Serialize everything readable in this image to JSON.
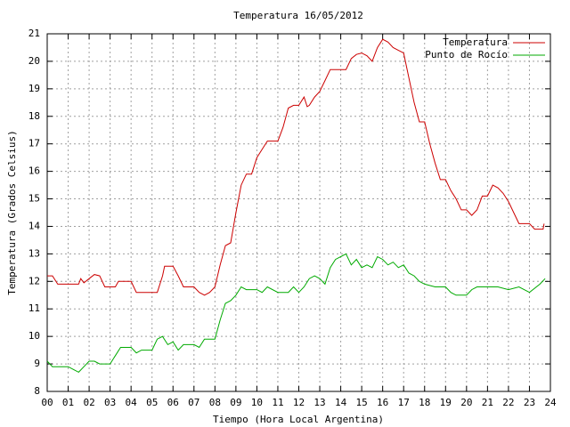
{
  "chart_data": {
    "type": "line",
    "title": "Temperatura 16/05/2012",
    "x_label": "Tiempo (Hora Local Argentina)",
    "y_label": "Temperatura (Grados Celsius)",
    "xlim": [
      0,
      24
    ],
    "ylim": [
      8,
      21
    ],
    "xticks": [
      {
        "value": 0,
        "label": "00"
      },
      {
        "value": 1,
        "label": "01"
      },
      {
        "value": 2,
        "label": "02"
      },
      {
        "value": 3,
        "label": "03"
      },
      {
        "value": 4,
        "label": "04"
      },
      {
        "value": 5,
        "label": "05"
      },
      {
        "value": 6,
        "label": "06"
      },
      {
        "value": 7,
        "label": "07"
      },
      {
        "value": 8,
        "label": "08"
      },
      {
        "value": 9,
        "label": "09"
      },
      {
        "value": 10,
        "label": "10"
      },
      {
        "value": 11,
        "label": "11"
      },
      {
        "value": 12,
        "label": "12"
      },
      {
        "value": 13,
        "label": "13"
      },
      {
        "value": 14,
        "label": "14"
      },
      {
        "value": 15,
        "label": "15"
      },
      {
        "value": 16,
        "label": "16"
      },
      {
        "value": 17,
        "label": "17"
      },
      {
        "value": 18,
        "label": "18"
      },
      {
        "value": 19,
        "label": "19"
      },
      {
        "value": 20,
        "label": "20"
      },
      {
        "value": 21,
        "label": "21"
      },
      {
        "value": 22,
        "label": "22"
      },
      {
        "value": 23,
        "label": "23"
      },
      {
        "value": 24,
        "label": "24"
      }
    ],
    "yticks": [
      8,
      9,
      10,
      11,
      12,
      13,
      14,
      15,
      16,
      17,
      18,
      19,
      20,
      21
    ],
    "grid": true,
    "legend": "top-right",
    "series": [
      {
        "name": "Temperatura",
        "color": "#cc0000",
        "x": [
          0,
          0.25,
          0.5,
          1,
          1.5,
          1.6,
          1.75,
          2,
          2.25,
          2.5,
          2.75,
          3,
          3.25,
          3.4,
          3.5,
          4,
          4.25,
          4.5,
          5,
          5.25,
          5.5,
          5.6,
          6,
          6.25,
          6.5,
          7,
          7.25,
          7.5,
          7.75,
          8,
          8.25,
          8.5,
          8.75,
          9,
          9.25,
          9.5,
          9.75,
          10,
          10.25,
          10.5,
          11,
          11.25,
          11.5,
          11.75,
          12,
          12.25,
          12.4,
          12.5,
          12.75,
          13,
          13.25,
          13.5,
          14,
          14.25,
          14.5,
          14.75,
          15,
          15.25,
          15.5,
          15.75,
          16,
          16.25,
          16.5,
          16.75,
          17,
          17.25,
          17.5,
          17.75,
          18,
          18.25,
          18.5,
          18.75,
          19,
          19.25,
          19.5,
          19.75,
          20,
          20.25,
          20.5,
          20.75,
          21,
          21.25,
          21.5,
          21.75,
          22,
          22.25,
          22.5,
          22.75,
          23,
          23.25,
          23.5,
          23.65,
          23.7
        ],
        "values": [
          12.2,
          12.2,
          11.9,
          11.9,
          11.9,
          12.1,
          11.95,
          12.1,
          12.25,
          12.2,
          11.8,
          11.8,
          11.8,
          12.0,
          12.0,
          12.0,
          11.6,
          11.6,
          11.6,
          11.6,
          12.2,
          12.55,
          12.55,
          12.2,
          11.8,
          11.8,
          11.6,
          11.5,
          11.6,
          11.8,
          12.6,
          13.3,
          13.4,
          14.5,
          15.5,
          15.9,
          15.9,
          16.5,
          16.8,
          17.1,
          17.1,
          17.6,
          18.3,
          18.4,
          18.4,
          18.7,
          18.35,
          18.4,
          18.7,
          18.9,
          19.3,
          19.7,
          19.7,
          19.7,
          20.1,
          20.25,
          20.3,
          20.2,
          20.0,
          20.5,
          20.8,
          20.7,
          20.5,
          20.4,
          20.3,
          19.4,
          18.5,
          17.8,
          17.8,
          17.0,
          16.3,
          15.7,
          15.7,
          15.3,
          15.0,
          14.6,
          14.6,
          14.4,
          14.6,
          15.1,
          15.1,
          15.5,
          15.4,
          15.2,
          14.9,
          14.5,
          14.1,
          14.1,
          14.1,
          13.9,
          13.9,
          13.9,
          14.1
        ]
      },
      {
        "name": "Punto de Rocío",
        "color": "#00aa00",
        "x": [
          0,
          0.25,
          0.5,
          1,
          1.25,
          1.5,
          1.75,
          2,
          2.25,
          2.5,
          3,
          3.25,
          3.5,
          4,
          4.25,
          4.5,
          5,
          5.25,
          5.5,
          5.75,
          6,
          6.25,
          6.5,
          7,
          7.25,
          7.5,
          8,
          8.25,
          8.5,
          8.75,
          9,
          9.25,
          9.5,
          10,
          10.25,
          10.5,
          11,
          11.5,
          11.75,
          12,
          12.25,
          12.5,
          12.75,
          13,
          13.25,
          13.5,
          13.75,
          14,
          14.25,
          14.5,
          14.75,
          15,
          15.25,
          15.5,
          15.75,
          16,
          16.25,
          16.5,
          16.75,
          17,
          17.25,
          17.5,
          17.75,
          18,
          18.5,
          19,
          19.25,
          19.5,
          20,
          20.25,
          20.5,
          21,
          21.5,
          22,
          22.5,
          23,
          23.5,
          23.75
        ],
        "values": [
          9.1,
          8.9,
          8.9,
          8.9,
          8.8,
          8.7,
          8.9,
          9.1,
          9.1,
          9.0,
          9.0,
          9.3,
          9.6,
          9.6,
          9.4,
          9.5,
          9.5,
          9.9,
          10.0,
          9.7,
          9.8,
          9.5,
          9.7,
          9.7,
          9.6,
          9.9,
          9.9,
          10.6,
          11.2,
          11.3,
          11.5,
          11.8,
          11.7,
          11.7,
          11.6,
          11.8,
          11.6,
          11.6,
          11.8,
          11.6,
          11.8,
          12.1,
          12.2,
          12.1,
          11.9,
          12.5,
          12.8,
          12.9,
          13.0,
          12.6,
          12.8,
          12.5,
          12.6,
          12.5,
          12.9,
          12.8,
          12.6,
          12.7,
          12.5,
          12.6,
          12.3,
          12.2,
          12.0,
          11.9,
          11.8,
          11.8,
          11.6,
          11.5,
          11.5,
          11.7,
          11.8,
          11.8,
          11.8,
          11.7,
          11.8,
          11.6,
          11.9,
          12.1
        ]
      }
    ]
  }
}
